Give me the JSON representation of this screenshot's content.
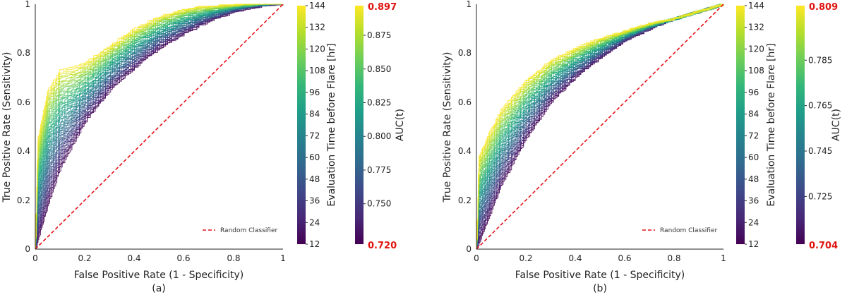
{
  "colors": {
    "random": "#e8141a",
    "axis": "#222222",
    "extreme_label": "#e0150f",
    "viridis": [
      "#440154",
      "#482878",
      "#3e4989",
      "#31688e",
      "#26828e",
      "#1f9e89",
      "#35b779",
      "#6ece58",
      "#b5de2b",
      "#fde725"
    ]
  },
  "chart_data": [
    {
      "panel": "a",
      "caption": "(a)",
      "type": "line",
      "xlabel": "False Positive Rate (1 - Specificity)",
      "ylabel": "True Positive Rate (Sensitivity)",
      "xlim": [
        0,
        1
      ],
      "ylim": [
        0,
        1
      ],
      "xticks": [
        "0",
        "0.2",
        "0.4",
        "0.6",
        "0.8",
        "1"
      ],
      "yticks": [
        "0",
        "0.2",
        "0.4",
        "0.6",
        "0.8",
        "1"
      ],
      "legend": "Random Classifier",
      "legend_position": "bottom-right",
      "n_curves": 45,
      "auc_min": 0.72,
      "auc_max": 0.897,
      "time_colorbar": {
        "label": "Evaluation Time before Flare [hr]",
        "min": 12,
        "max": 144,
        "ticks": [
          "12",
          "24",
          "36",
          "48",
          "60",
          "72",
          "84",
          "96",
          "108",
          "120",
          "132",
          "144"
        ]
      },
      "auc_colorbar": {
        "label": "AUC(t)",
        "min_label": "0.720",
        "max_label": "0.897",
        "ticks": [
          "0.750",
          "0.775",
          "0.800",
          "0.825",
          "0.850",
          "0.875"
        ],
        "tick_values": [
          0.75,
          0.775,
          0.8,
          0.825,
          0.85,
          0.875
        ]
      },
      "anchor_curve_low_auc": {
        "fpr": [
          0,
          0.05,
          0.1,
          0.2,
          0.3,
          0.4,
          0.5,
          0.6,
          0.7,
          0.8,
          0.9,
          1
        ],
        "tpr": [
          0,
          0.18,
          0.33,
          0.52,
          0.65,
          0.74,
          0.82,
          0.88,
          0.93,
          0.97,
          0.99,
          1
        ]
      },
      "anchor_curve_high_auc": {
        "fpr": [
          0,
          0.01,
          0.05,
          0.1,
          0.15,
          0.2,
          0.3,
          0.4,
          0.5,
          0.6,
          0.7,
          0.8,
          0.9,
          1
        ],
        "tpr": [
          0,
          0.45,
          0.65,
          0.73,
          0.74,
          0.76,
          0.83,
          0.9,
          0.95,
          0.98,
          0.99,
          0.995,
          1,
          1
        ]
      }
    },
    {
      "panel": "b",
      "caption": "(b)",
      "type": "line",
      "xlabel": "False Positive Rate (1 - Specificity)",
      "ylabel": "True Positive Rate (Sensitivity)",
      "xlim": [
        0,
        1
      ],
      "ylim": [
        0,
        1
      ],
      "xticks": [
        "0",
        "0.2",
        "0.4",
        "0.6",
        "0.8",
        "1"
      ],
      "yticks": [
        "0",
        "0.2",
        "0.4",
        "0.6",
        "0.8",
        "1"
      ],
      "legend": "Random Classifier",
      "legend_position": "bottom-right",
      "n_curves": 45,
      "auc_min": 0.704,
      "auc_max": 0.809,
      "time_colorbar": {
        "label": "Evaluation Time before Flare [hr]",
        "min": 12,
        "max": 144,
        "ticks": [
          "12",
          "24",
          "36",
          "48",
          "60",
          "72",
          "84",
          "96",
          "108",
          "120",
          "132",
          "144"
        ]
      },
      "auc_colorbar": {
        "label": "AUC(t)",
        "min_label": "0.704",
        "max_label": "0.809",
        "ticks": [
          "0.725",
          "0.745",
          "0.765",
          "0.785"
        ],
        "tick_values": [
          0.725,
          0.745,
          0.765,
          0.785
        ]
      },
      "anchor_curve_low_auc": {
        "fpr": [
          0,
          0.05,
          0.1,
          0.2,
          0.3,
          0.4,
          0.5,
          0.6,
          0.7,
          0.8,
          0.9,
          1
        ],
        "tpr": [
          0,
          0.13,
          0.26,
          0.45,
          0.6,
          0.7,
          0.78,
          0.85,
          0.9,
          0.94,
          0.97,
          1
        ]
      },
      "anchor_curve_high_auc": {
        "fpr": [
          0,
          0.01,
          0.05,
          0.1,
          0.2,
          0.3,
          0.4,
          0.5,
          0.6,
          0.7,
          0.8,
          0.9,
          1
        ],
        "tpr": [
          0,
          0.38,
          0.47,
          0.57,
          0.69,
          0.77,
          0.82,
          0.86,
          0.89,
          0.92,
          0.94,
          0.97,
          1
        ]
      }
    }
  ]
}
